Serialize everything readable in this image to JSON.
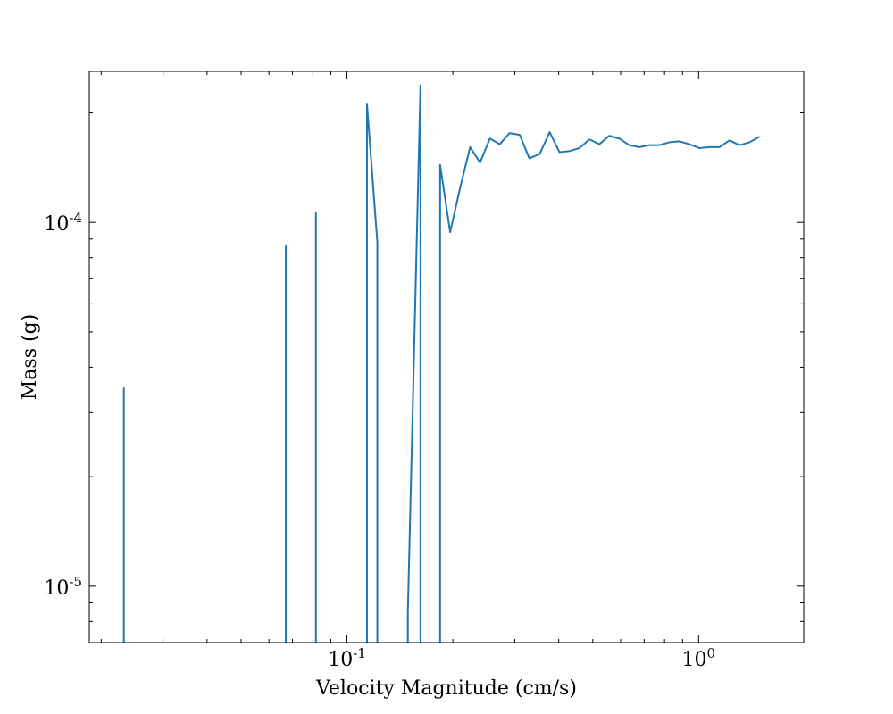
{
  "chart_data": {
    "type": "line",
    "title": "",
    "xlabel": "Velocity Magnitude  (cm/s)",
    "ylabel": "Mass  (g)",
    "xscale": "log",
    "yscale": "log",
    "xlim": [
      0.0185,
      1.99
    ],
    "ylim": [
      7e-06,
      0.00026
    ],
    "grid": false,
    "legend": "none",
    "x_ticks": [
      {
        "value": 0.1,
        "base": "10",
        "exp": "-1"
      },
      {
        "value": 1.0,
        "base": "10",
        "exp": "0"
      }
    ],
    "y_ticks": [
      {
        "value": 1e-05,
        "base": "10",
        "exp": "-5"
      },
      {
        "value": 0.0001,
        "base": "10",
        "exp": "-4"
      }
    ],
    "series": [
      {
        "color": "#1f77b4",
        "points": [
          [
            0.0232,
            6e-06
          ],
          [
            0.0232,
            3.5e-05
          ],
          [
            0.0232,
            6e-06
          ],
          [
            0.067,
            6e-06
          ],
          [
            0.067,
            8.6e-05
          ],
          [
            0.067,
            6e-06
          ],
          [
            0.0816,
            6e-06
          ],
          [
            0.0816,
            0.000106
          ],
          [
            0.0816,
            6e-06
          ],
          [
            0.114,
            6e-06
          ],
          [
            0.114,
            0.000212
          ],
          [
            0.122,
            8.8e-05
          ],
          [
            0.122,
            6e-06
          ],
          [
            0.149,
            6e-06
          ],
          [
            0.149,
            8.5e-06
          ],
          [
            0.1618,
            0.000238
          ],
          [
            0.1618,
            6e-06
          ],
          [
            0.184,
            6e-06
          ],
          [
            0.184,
            0.000144
          ],
          [
            0.1965,
            9.4e-05
          ],
          [
            0.21,
            0.000125
          ],
          [
            0.224,
            0.000161
          ],
          [
            0.239,
            0.000146
          ],
          [
            0.255,
            0.00017
          ],
          [
            0.272,
            0.000164
          ],
          [
            0.29,
            0.000176
          ],
          [
            0.31,
            0.000174
          ],
          [
            0.33,
            0.00015
          ],
          [
            0.353,
            0.000154
          ],
          [
            0.377,
            0.000177
          ],
          [
            0.402,
            0.000156
          ],
          [
            0.429,
            0.000157
          ],
          [
            0.458,
            0.00016
          ],
          [
            0.489,
            0.000169
          ],
          [
            0.522,
            0.000164
          ],
          [
            0.557,
            0.000173
          ],
          [
            0.595,
            0.00017
          ],
          [
            0.635,
            0.000163
          ],
          [
            0.678,
            0.000161
          ],
          [
            0.724,
            0.000163
          ],
          [
            0.773,
            0.000163
          ],
          [
            0.825,
            0.000166
          ],
          [
            0.881,
            0.000167
          ],
          [
            0.941,
            0.000164
          ],
          [
            1.005,
            0.00016
          ],
          [
            1.073,
            0.000161
          ],
          [
            1.146,
            0.000161
          ],
          [
            1.224,
            0.000168
          ],
          [
            1.307,
            0.000163
          ],
          [
            1.396,
            0.000166
          ],
          [
            1.49,
            0.000172
          ]
        ]
      }
    ]
  }
}
